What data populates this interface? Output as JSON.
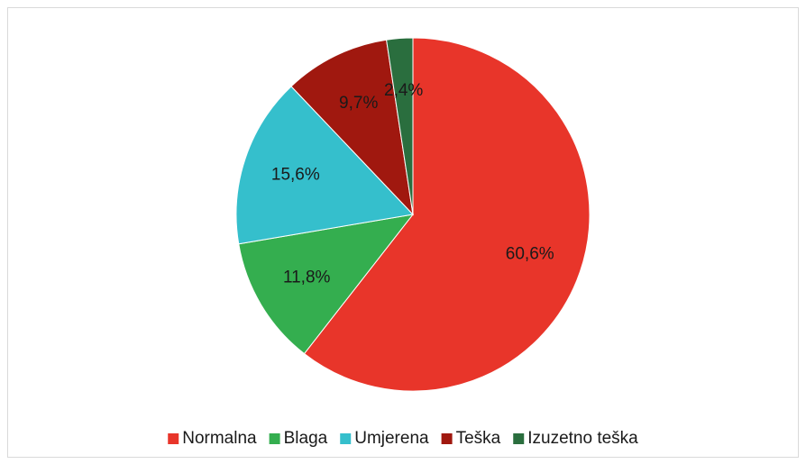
{
  "chart_data": {
    "type": "pie",
    "categories": [
      "Normalna",
      "Blaga",
      "Umjerena",
      "Teška",
      "Izuzetno teška"
    ],
    "values": [
      60.6,
      11.8,
      15.6,
      9.7,
      2.4
    ],
    "value_labels": [
      "60,6%",
      "11,8%",
      "15,6%",
      "9,7%",
      "2,4%"
    ],
    "colors": [
      "#e8352a",
      "#34ae4f",
      "#35bfcc",
      "#a0180f",
      "#2a6e3e"
    ],
    "legend": "bottom"
  }
}
